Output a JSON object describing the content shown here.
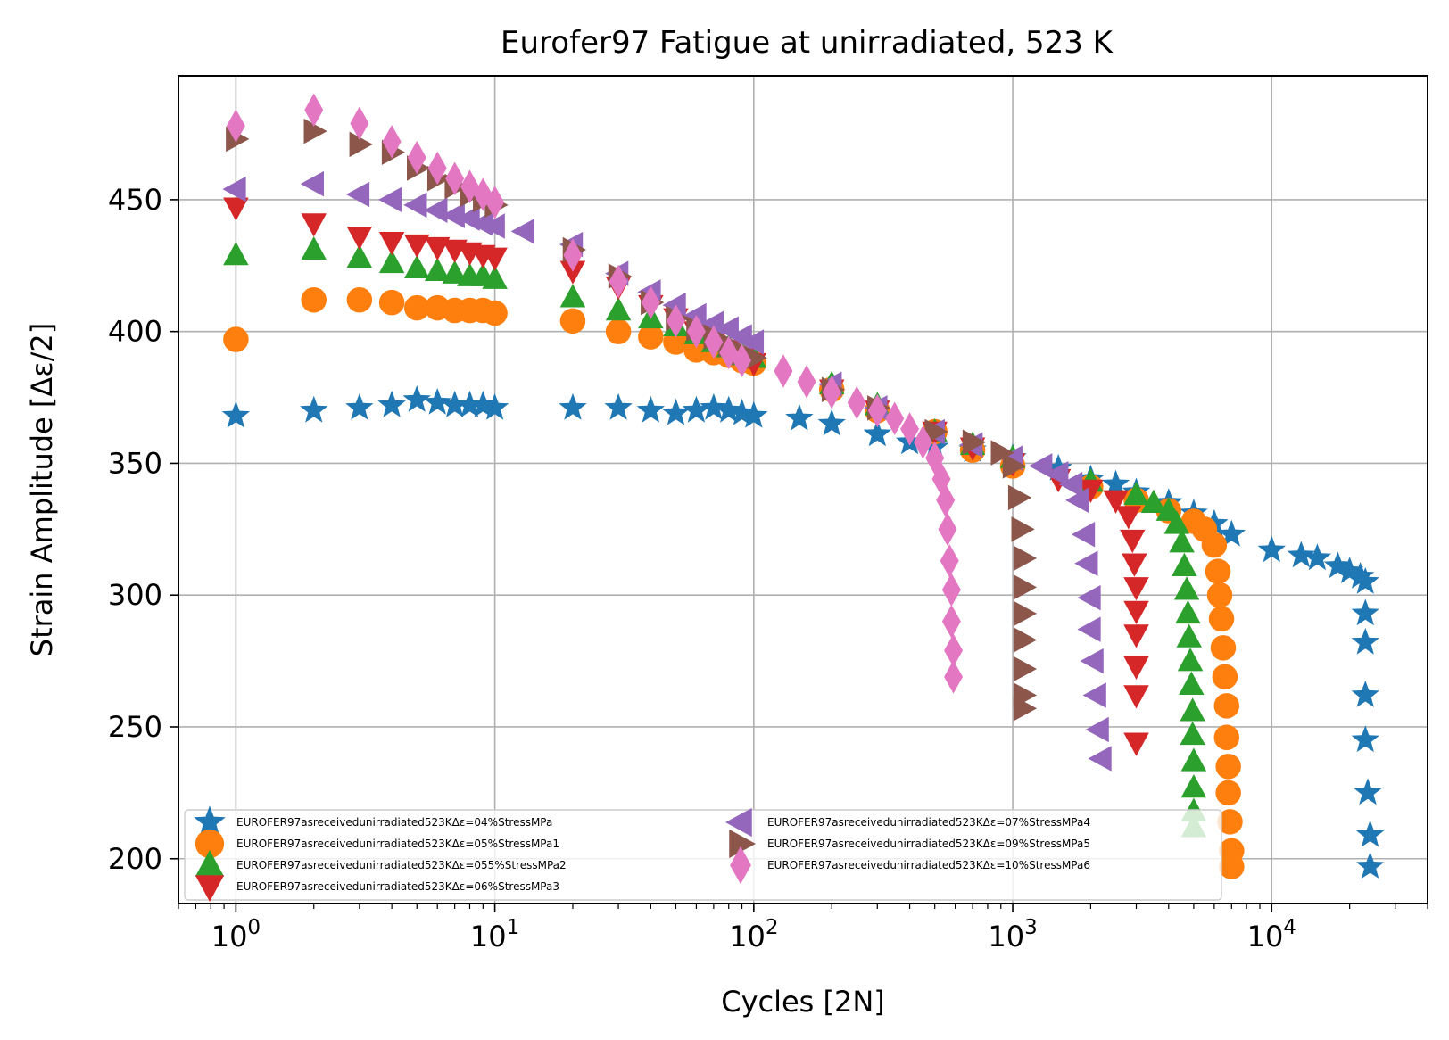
{
  "chart_data": {
    "type": "scatter",
    "title": "Eurofer97 Fatigue at unirradiated, 523 K",
    "xlabel": "Cycles [2N]",
    "ylabel": "Strain Amplitude [Δε/2]",
    "xscale": "log",
    "xlim": [
      0.6,
      40000
    ],
    "ylim": [
      183,
      497
    ],
    "x_ticks": [
      1,
      10,
      100,
      1000,
      10000
    ],
    "x_tick_labels": [
      [
        "10",
        "0"
      ],
      [
        "10",
        "1"
      ],
      [
        "10",
        "2"
      ],
      [
        "10",
        "3"
      ],
      [
        "10",
        "4"
      ]
    ],
    "y_ticks": [
      200,
      250,
      300,
      350,
      400,
      450
    ],
    "y_tick_labels": [
      "200",
      "250",
      "300",
      "350",
      "400",
      "450"
    ],
    "grid": true,
    "legend_position": "lower-left",
    "legend_columns": 2,
    "series": [
      {
        "name": "EUROFER97asreceivedunirradiated523KΔε=04%StressMPa",
        "color": "#1f77b4",
        "marker": "star",
        "points": [
          [
            1,
            368
          ],
          [
            2,
            370
          ],
          [
            3,
            371
          ],
          [
            4,
            372
          ],
          [
            5,
            374
          ],
          [
            6,
            373
          ],
          [
            7,
            372
          ],
          [
            8,
            372
          ],
          [
            9,
            372
          ],
          [
            10,
            371
          ],
          [
            20,
            371
          ],
          [
            30,
            371
          ],
          [
            40,
            370
          ],
          [
            50,
            369
          ],
          [
            60,
            370
          ],
          [
            70,
            371
          ],
          [
            80,
            370
          ],
          [
            90,
            369
          ],
          [
            100,
            368
          ],
          [
            150,
            367
          ],
          [
            200,
            365
          ],
          [
            300,
            361
          ],
          [
            400,
            358
          ],
          [
            500,
            356
          ],
          [
            700,
            355
          ],
          [
            1000,
            352
          ],
          [
            1500,
            348
          ],
          [
            2000,
            344
          ],
          [
            2500,
            342
          ],
          [
            3000,
            339
          ],
          [
            4000,
            335
          ],
          [
            5000,
            331
          ],
          [
            6000,
            327
          ],
          [
            7000,
            323
          ],
          [
            10000,
            317
          ],
          [
            13000,
            315
          ],
          [
            15000,
            314
          ],
          [
            18000,
            311
          ],
          [
            20000,
            309
          ],
          [
            22000,
            307
          ],
          [
            23000,
            305
          ],
          [
            23000,
            293
          ],
          [
            23000,
            282
          ],
          [
            23000,
            262
          ],
          [
            23000,
            245
          ],
          [
            23500,
            225
          ],
          [
            24000,
            209
          ],
          [
            24000,
            197
          ]
        ]
      },
      {
        "name": "EUROFER97asreceivedunirradiated523KΔε=05%StressMPa1",
        "color": "#ff7f0e",
        "marker": "circle",
        "points": [
          [
            1,
            397
          ],
          [
            2,
            412
          ],
          [
            3,
            412
          ],
          [
            4,
            411
          ],
          [
            5,
            409
          ],
          [
            6,
            409
          ],
          [
            7,
            408
          ],
          [
            8,
            408
          ],
          [
            9,
            408
          ],
          [
            10,
            407
          ],
          [
            20,
            404
          ],
          [
            30,
            400
          ],
          [
            40,
            398
          ],
          [
            50,
            396
          ],
          [
            60,
            393
          ],
          [
            70,
            392
          ],
          [
            80,
            391
          ],
          [
            90,
            389
          ],
          [
            100,
            388
          ],
          [
            200,
            378
          ],
          [
            300,
            370
          ],
          [
            500,
            362
          ],
          [
            700,
            355
          ],
          [
            1000,
            349
          ],
          [
            2000,
            341
          ],
          [
            3000,
            336
          ],
          [
            4000,
            332
          ],
          [
            5000,
            328
          ],
          [
            5500,
            325
          ],
          [
            6000,
            319
          ],
          [
            6200,
            309
          ],
          [
            6300,
            300
          ],
          [
            6400,
            291
          ],
          [
            6500,
            280
          ],
          [
            6600,
            269
          ],
          [
            6700,
            258
          ],
          [
            6700,
            246
          ],
          [
            6800,
            235
          ],
          [
            6800,
            225
          ],
          [
            6900,
            214
          ],
          [
            7000,
            203
          ],
          [
            7000,
            197
          ]
        ]
      },
      {
        "name": "EUROFER97asreceivedunirradiated523KΔε=055%StressMPa2",
        "color": "#2ca02c",
        "marker": "triangle-up",
        "points": [
          [
            1,
            429
          ],
          [
            2,
            431
          ],
          [
            3,
            428
          ],
          [
            4,
            426
          ],
          [
            5,
            424
          ],
          [
            6,
            423
          ],
          [
            7,
            422
          ],
          [
            8,
            421
          ],
          [
            9,
            421
          ],
          [
            10,
            420
          ],
          [
            20,
            413
          ],
          [
            30,
            408
          ],
          [
            40,
            405
          ],
          [
            50,
            402
          ],
          [
            60,
            399
          ],
          [
            70,
            396
          ],
          [
            80,
            394
          ],
          [
            90,
            391
          ],
          [
            100,
            390
          ],
          [
            200,
            380
          ],
          [
            300,
            372
          ],
          [
            500,
            362
          ],
          [
            700,
            357
          ],
          [
            1000,
            352
          ],
          [
            2000,
            343
          ],
          [
            3000,
            338
          ],
          [
            3500,
            335
          ],
          [
            4000,
            332
          ],
          [
            4300,
            327
          ],
          [
            4500,
            320
          ],
          [
            4600,
            311
          ],
          [
            4700,
            302
          ],
          [
            4750,
            293
          ],
          [
            4800,
            284
          ],
          [
            4850,
            275
          ],
          [
            4900,
            266
          ],
          [
            4950,
            256
          ],
          [
            4950,
            247
          ],
          [
            5000,
            237
          ],
          [
            5000,
            227
          ],
          [
            5000,
            218
          ],
          [
            5000,
            212
          ]
        ]
      },
      {
        "name": "EUROFER97asreceivedunirradiated523KΔε=06%StressMPa3",
        "color": "#d62728",
        "marker": "triangle-down",
        "points": [
          [
            1,
            447
          ],
          [
            2,
            441
          ],
          [
            3,
            436
          ],
          [
            4,
            434
          ],
          [
            5,
            433
          ],
          [
            6,
            432
          ],
          [
            7,
            431
          ],
          [
            8,
            430
          ],
          [
            9,
            429
          ],
          [
            10,
            428
          ],
          [
            20,
            423
          ],
          [
            30,
            417
          ],
          [
            40,
            410
          ],
          [
            50,
            405
          ],
          [
            60,
            400
          ],
          [
            70,
            396
          ],
          [
            80,
            393
          ],
          [
            90,
            390
          ],
          [
            100,
            388
          ],
          [
            200,
            378
          ],
          [
            300,
            370
          ],
          [
            500,
            362
          ],
          [
            700,
            356
          ],
          [
            1000,
            350
          ],
          [
            1500,
            344
          ],
          [
            2000,
            340
          ],
          [
            2500,
            336
          ],
          [
            2800,
            330
          ],
          [
            2900,
            321
          ],
          [
            2950,
            312
          ],
          [
            3000,
            303
          ],
          [
            3000,
            294
          ],
          [
            3000,
            285
          ],
          [
            3000,
            273
          ],
          [
            3000,
            262
          ],
          [
            3000,
            244
          ]
        ]
      },
      {
        "name": "EUROFER97asreceivedunirradiated523KΔε=07%StressMPa4",
        "color": "#9467bd",
        "marker": "triangle-left",
        "points": [
          [
            1,
            454
          ],
          [
            2,
            456
          ],
          [
            3,
            452
          ],
          [
            4,
            450
          ],
          [
            5,
            448
          ],
          [
            6,
            446
          ],
          [
            7,
            444
          ],
          [
            8,
            443
          ],
          [
            9,
            441
          ],
          [
            10,
            440
          ],
          [
            13,
            438
          ],
          [
            20,
            433
          ],
          [
            30,
            422
          ],
          [
            40,
            415
          ],
          [
            50,
            410
          ],
          [
            60,
            406
          ],
          [
            70,
            403
          ],
          [
            80,
            401
          ],
          [
            90,
            398
          ],
          [
            100,
            396
          ],
          [
            200,
            380
          ],
          [
            300,
            371
          ],
          [
            500,
            362
          ],
          [
            700,
            357
          ],
          [
            1000,
            352
          ],
          [
            1300,
            349
          ],
          [
            1500,
            346
          ],
          [
            1700,
            342
          ],
          [
            1800,
            336
          ],
          [
            1900,
            323
          ],
          [
            1950,
            312
          ],
          [
            2000,
            299
          ],
          [
            2000,
            287
          ],
          [
            2050,
            275
          ],
          [
            2100,
            262
          ],
          [
            2150,
            249
          ],
          [
            2200,
            238
          ]
        ]
      },
      {
        "name": "EUROFER97asreceivedunirradiated523KΔε=09%StressMPa5",
        "color": "#8c564b",
        "marker": "triangle-right",
        "points": [
          [
            1,
            473
          ],
          [
            2,
            476
          ],
          [
            3,
            471
          ],
          [
            4,
            468
          ],
          [
            5,
            462
          ],
          [
            6,
            458
          ],
          [
            7,
            455
          ],
          [
            8,
            452
          ],
          [
            9,
            450
          ],
          [
            10,
            448
          ],
          [
            20,
            431
          ],
          [
            30,
            421
          ],
          [
            40,
            411
          ],
          [
            50,
            405
          ],
          [
            60,
            401
          ],
          [
            70,
            398
          ],
          [
            80,
            395
          ],
          [
            90,
            392
          ],
          [
            100,
            390
          ],
          [
            200,
            378
          ],
          [
            300,
            371
          ],
          [
            500,
            362
          ],
          [
            700,
            358
          ],
          [
            900,
            354
          ],
          [
            1000,
            349
          ],
          [
            1050,
            337
          ],
          [
            1080,
            325
          ],
          [
            1100,
            314
          ],
          [
            1100,
            303
          ],
          [
            1100,
            293
          ],
          [
            1100,
            283
          ],
          [
            1100,
            272
          ],
          [
            1100,
            262
          ],
          [
            1100,
            257
          ]
        ]
      },
      {
        "name": "EUROFER97asreceivedunirradiated523KΔε=10%StressMPa6",
        "color": "#e377c2",
        "marker": "diamond",
        "points": [
          [
            1,
            478
          ],
          [
            2,
            484
          ],
          [
            3,
            479
          ],
          [
            4,
            472
          ],
          [
            5,
            466
          ],
          [
            6,
            462
          ],
          [
            7,
            458
          ],
          [
            8,
            455
          ],
          [
            9,
            452
          ],
          [
            10,
            449
          ],
          [
            20,
            429
          ],
          [
            30,
            419
          ],
          [
            40,
            411
          ],
          [
            50,
            404
          ],
          [
            60,
            400
          ],
          [
            70,
            396
          ],
          [
            80,
            392
          ],
          [
            90,
            389
          ],
          [
            130,
            385
          ],
          [
            160,
            381
          ],
          [
            200,
            377
          ],
          [
            250,
            373
          ],
          [
            300,
            370
          ],
          [
            350,
            367
          ],
          [
            400,
            363
          ],
          [
            450,
            358
          ],
          [
            500,
            352
          ],
          [
            530,
            344
          ],
          [
            550,
            336
          ],
          [
            560,
            325
          ],
          [
            570,
            313
          ],
          [
            580,
            302
          ],
          [
            580,
            290
          ],
          [
            590,
            279
          ],
          [
            590,
            269
          ]
        ]
      }
    ]
  }
}
